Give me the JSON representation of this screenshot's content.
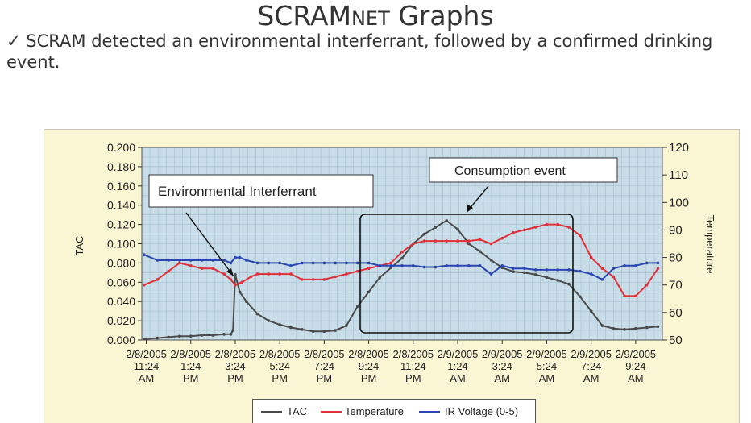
{
  "slide": {
    "title_main": "SCRAM",
    "title_small": "NET",
    "title_rest": " Graphs",
    "bullet_mark": "✓",
    "bullet_text": "SCRAM detected an environmental interferrant, followed by a confirmed drinking event."
  },
  "colors": {
    "tac": "#4a4a4a",
    "temperature": "#e0303a",
    "ir_voltage": "#2b46b0",
    "plot_background": "#c8dde8",
    "frame_background": "#faf5d2"
  },
  "chart_data": {
    "type": "line",
    "ylabel": "TAC",
    "y2label": "Temperature",
    "ylim": [
      0,
      0.2
    ],
    "y2lim": [
      50,
      120
    ],
    "y_ticks": [
      "0.000",
      "0.020",
      "0.040",
      "0.060",
      "0.080",
      "0.100",
      "0.120",
      "0.140",
      "0.160",
      "0.180",
      "0.200"
    ],
    "y2_ticks": [
      "50",
      "60",
      "70",
      "80",
      "90",
      "100",
      "110",
      "120"
    ],
    "x_ticks": [
      [
        "2/8/2005",
        "11:24",
        "AM"
      ],
      [
        "2/8/2005",
        "1:24",
        "PM"
      ],
      [
        "2/8/2005",
        "3:24",
        "PM"
      ],
      [
        "2/8/2005",
        "5:24",
        "PM"
      ],
      [
        "2/8/2005",
        "7:24",
        "PM"
      ],
      [
        "2/8/2005",
        "9:24",
        "PM"
      ],
      [
        "2/8/2005",
        "11:24",
        "PM"
      ],
      [
        "2/9/2005",
        "1:24",
        "AM"
      ],
      [
        "2/9/2005",
        "3:24",
        "AM"
      ],
      [
        "2/9/2005",
        "5:24",
        "AM"
      ],
      [
        "2/9/2005",
        "7:24",
        "AM"
      ],
      [
        "2/9/2005",
        "9:24",
        "AM"
      ]
    ],
    "x_tick_hours": [
      0,
      2,
      4,
      6,
      8,
      10,
      12,
      14,
      16,
      18,
      20,
      22
    ],
    "xlim": [
      -0.2,
      23.2
    ],
    "grid": true,
    "legend_position": "bottom",
    "series": [
      {
        "name": "TAC",
        "axis": "left",
        "x": [
          -0.1,
          0.5,
          1,
          1.5,
          2,
          2.5,
          3,
          3.5,
          3.8,
          3.9,
          4.0,
          4.2,
          4.5,
          5,
          5.5,
          6,
          6.5,
          7,
          7.5,
          8,
          8.5,
          9,
          9.5,
          10,
          10.5,
          11,
          11.5,
          12,
          12.5,
          13,
          13.5,
          14,
          14.5,
          15,
          15.5,
          16,
          16.5,
          17,
          17.5,
          18,
          18.5,
          19,
          19.5,
          20,
          20.5,
          21,
          21.5,
          22,
          22.5,
          23
        ],
        "y": [
          0.001,
          0.002,
          0.003,
          0.004,
          0.004,
          0.005,
          0.005,
          0.006,
          0.006,
          0.01,
          0.068,
          0.05,
          0.04,
          0.027,
          0.02,
          0.016,
          0.013,
          0.011,
          0.009,
          0.009,
          0.01,
          0.015,
          0.035,
          0.05,
          0.065,
          0.075,
          0.085,
          0.1,
          0.11,
          0.117,
          0.124,
          0.115,
          0.1,
          0.092,
          0.083,
          0.075,
          0.071,
          0.07,
          0.068,
          0.065,
          0.062,
          0.058,
          0.045,
          0.03,
          0.015,
          0.012,
          0.011,
          0.012,
          0.013,
          0.014
        ]
      },
      {
        "name": "Temperature",
        "axis": "right",
        "x": [
          -0.1,
          0.5,
          1,
          1.5,
          2,
          2.5,
          3,
          3.5,
          3.8,
          4.0,
          4.3,
          4.7,
          5,
          5.5,
          6,
          6.5,
          7,
          7.5,
          8,
          8.5,
          9,
          9.5,
          10,
          10.5,
          11,
          11.5,
          12,
          12.5,
          13,
          13.5,
          14,
          14.5,
          15,
          15.5,
          16,
          16.5,
          17,
          17.5,
          18,
          18.5,
          19,
          19.5,
          20,
          20.5,
          21,
          21.5,
          22,
          22.5,
          23
        ],
        "y": [
          70,
          72,
          75,
          78,
          77,
          76,
          76,
          74,
          72,
          70,
          71,
          73,
          74,
          74,
          74,
          74,
          72,
          72,
          72,
          73,
          74,
          75,
          76,
          77,
          78,
          82,
          85,
          86,
          86,
          86,
          86,
          86,
          86.5,
          85,
          87,
          89,
          90,
          91,
          92,
          92,
          91,
          88,
          80,
          76,
          73,
          66,
          66,
          70,
          76
        ],
        "markers": true
      },
      {
        "name": "IR Voltage (0-5)",
        "axis": "right",
        "x": [
          -0.1,
          0.5,
          1,
          1.5,
          2,
          2.5,
          3,
          3.5,
          3.8,
          4.0,
          4.2,
          4.5,
          5,
          5.5,
          6,
          6.5,
          7,
          7.5,
          8,
          8.5,
          9,
          9.5,
          10,
          10.5,
          11,
          11.5,
          12,
          12.5,
          13,
          13.5,
          14,
          14.5,
          15,
          15.5,
          16,
          16.5,
          17,
          17.5,
          18,
          18.5,
          19,
          19.5,
          20,
          20.5,
          21,
          21.5,
          22,
          22.5,
          23
        ],
        "y": [
          81,
          79,
          79,
          79,
          79,
          79,
          79,
          79,
          78,
          80,
          80,
          79,
          78,
          78,
          78,
          77,
          78,
          78,
          78,
          78,
          78,
          78,
          78,
          77,
          77,
          77,
          77,
          76.5,
          76.5,
          77,
          77,
          77,
          77,
          74,
          77,
          76,
          76,
          75.5,
          75.5,
          75.5,
          75.5,
          75,
          74,
          72,
          76,
          77,
          77,
          78,
          78
        ],
        "markers": true
      }
    ],
    "annotations": [
      "Environmental Interferrant",
      "Consumption event"
    ]
  }
}
